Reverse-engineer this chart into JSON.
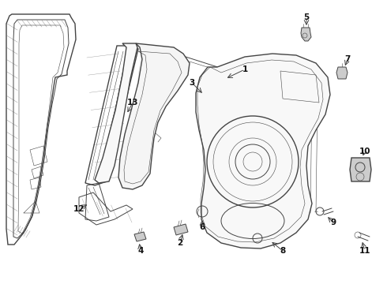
{
  "background_color": "#ffffff",
  "fig_width": 4.9,
  "fig_height": 3.6,
  "dpi": 100,
  "line_color": "#444444",
  "text_color": "#111111",
  "light_gray": "#cccccc",
  "mid_gray": "#888888",
  "hatch_color": "#999999"
}
